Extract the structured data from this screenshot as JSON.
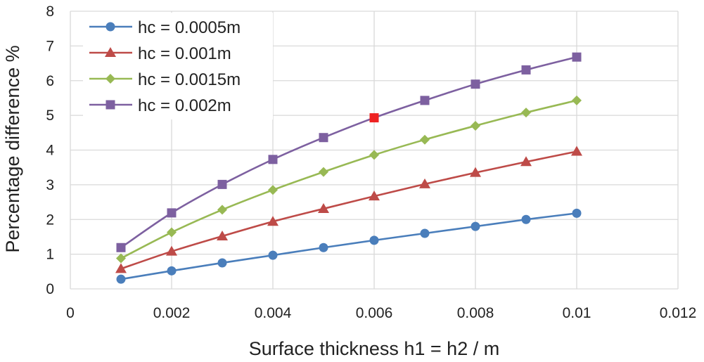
{
  "chart_data": {
    "type": "line",
    "title": "",
    "xlabel": "Surface thickness h1 = h2 / m",
    "ylabel": "Percentage difference %",
    "xlim": [
      0,
      0.012
    ],
    "ylim": [
      0,
      8
    ],
    "x_ticks": [
      0,
      0.002,
      0.004,
      0.006,
      0.008,
      0.01,
      0.012
    ],
    "x_tick_labels": [
      "0",
      "0.002",
      "0.004",
      "0.006",
      "0.008",
      "0.01",
      "0.012"
    ],
    "y_ticks": [
      0,
      1,
      2,
      3,
      4,
      5,
      6,
      7,
      8
    ],
    "y_tick_labels": [
      "0",
      "1",
      "2",
      "3",
      "4",
      "5",
      "6",
      "7",
      "8"
    ],
    "grid": true,
    "legend_position": "top-left",
    "x": [
      0.001,
      0.002,
      0.003,
      0.004,
      0.005,
      0.006,
      0.007,
      0.008,
      0.009,
      0.01
    ],
    "series": [
      {
        "name": "hc = 0.0005m",
        "color": "#4a7ebb",
        "marker": "circle",
        "values": [
          0.28,
          0.52,
          0.75,
          0.97,
          1.19,
          1.4,
          1.6,
          1.8,
          2.0,
          2.18
        ]
      },
      {
        "name": "hc = 0.001m",
        "color": "#be4b48",
        "marker": "triangle",
        "values": [
          0.58,
          1.08,
          1.52,
          1.94,
          2.31,
          2.67,
          3.02,
          3.35,
          3.66,
          3.96
        ]
      },
      {
        "name": "hc = 0.0015m",
        "color": "#98b954",
        "marker": "diamond",
        "values": [
          0.88,
          1.63,
          2.28,
          2.85,
          3.37,
          3.86,
          4.3,
          4.7,
          5.08,
          5.43
        ]
      },
      {
        "name": "hc = 0.002m",
        "color": "#7d60a0",
        "marker": "square",
        "values": [
          1.19,
          2.19,
          3.01,
          3.73,
          4.36,
          4.93,
          5.43,
          5.9,
          6.31,
          6.68
        ],
        "highlight_index": 5,
        "highlight_color": "#ee2222"
      }
    ]
  }
}
